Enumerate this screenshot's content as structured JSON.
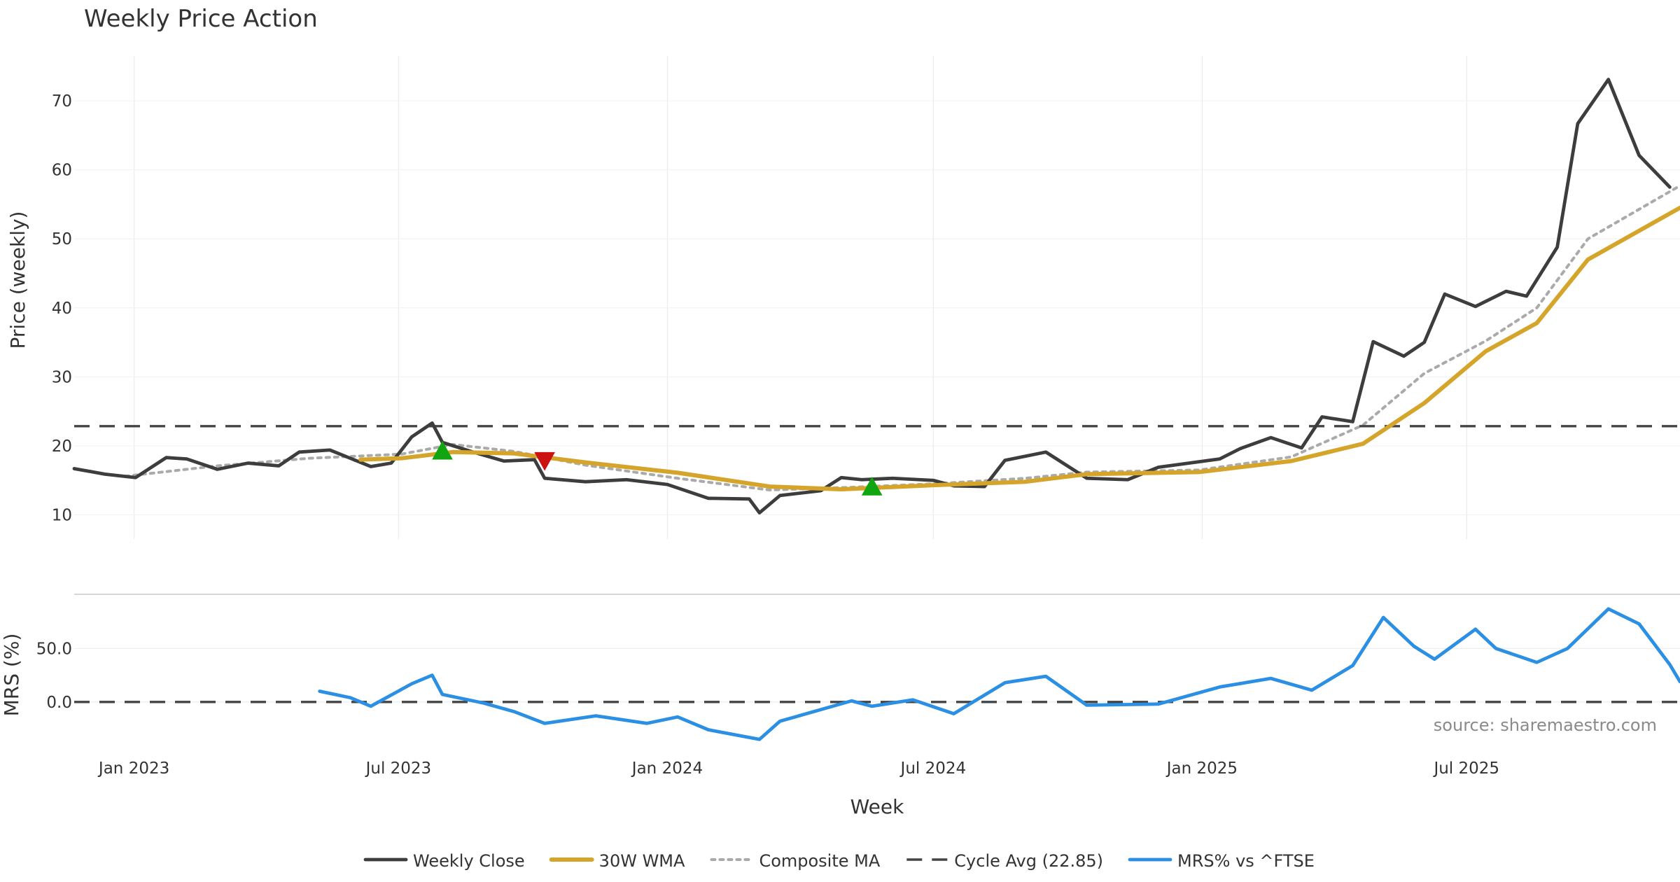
{
  "chart_data": {
    "type": "line",
    "title": "Weekly Price Action",
    "source": "source: sharemaestro.com",
    "x_axis": {
      "label": "Week",
      "range": [
        "2022-11-21",
        "2025-11-24"
      ],
      "tick_labels": [
        "Jan 2023",
        "Jul 2023",
        "Jan 2024",
        "Jul 2024",
        "Jan 2025",
        "Jul 2025"
      ],
      "tick_dates": [
        "2023-01-01",
        "2023-07-01",
        "2024-01-01",
        "2024-07-01",
        "2025-01-01",
        "2025-07-01"
      ]
    },
    "panels": [
      {
        "id": "price",
        "ylabel": "Price (weekly)",
        "ylim": [
          6.5,
          76.5
        ],
        "yticks": [
          10,
          20,
          30,
          40,
          50,
          60,
          70
        ],
        "tick_labels": [
          "10",
          "20",
          "30",
          "40",
          "50",
          "60",
          "70"
        ],
        "grid": true
      },
      {
        "id": "mrs",
        "ylabel": "MRS (%)",
        "ylim": [
          -44,
          100
        ],
        "yticks": [
          0,
          50
        ],
        "tick_labels": [
          "0.0",
          "50.0"
        ],
        "grid": true
      }
    ],
    "series": [
      {
        "name": "Weekly Close",
        "panel": "price",
        "color": "#3d3d3d",
        "style": "solid",
        "points": [
          [
            "2022-11-21",
            16.7
          ],
          [
            "2022-12-12",
            15.9
          ],
          [
            "2023-01-02",
            15.4
          ],
          [
            "2023-01-23",
            18.3
          ],
          [
            "2023-02-06",
            18.1
          ],
          [
            "2023-02-27",
            16.6
          ],
          [
            "2023-03-20",
            17.5
          ],
          [
            "2023-04-10",
            17.1
          ],
          [
            "2023-04-24",
            19.1
          ],
          [
            "2023-05-15",
            19.4
          ],
          [
            "2023-05-29",
            18.2
          ],
          [
            "2023-06-12",
            17.0
          ],
          [
            "2023-06-26",
            17.5
          ],
          [
            "2023-07-10",
            21.3
          ],
          [
            "2023-07-24",
            23.3
          ],
          [
            "2023-07-31",
            20.5
          ],
          [
            "2023-08-21",
            19.1
          ],
          [
            "2023-09-11",
            17.8
          ],
          [
            "2023-10-02",
            18.0
          ],
          [
            "2023-10-09",
            15.3
          ],
          [
            "2023-11-06",
            14.8
          ],
          [
            "2023-12-04",
            15.1
          ],
          [
            "2024-01-01",
            14.4
          ],
          [
            "2024-01-29",
            12.4
          ],
          [
            "2024-02-26",
            12.3
          ],
          [
            "2024-03-04",
            10.3
          ],
          [
            "2024-03-18",
            12.8
          ],
          [
            "2024-04-15",
            13.5
          ],
          [
            "2024-04-29",
            15.4
          ],
          [
            "2024-05-13",
            15.1
          ],
          [
            "2024-06-03",
            15.3
          ],
          [
            "2024-07-01",
            15.0
          ],
          [
            "2024-07-15",
            14.2
          ],
          [
            "2024-08-05",
            14.1
          ],
          [
            "2024-08-19",
            17.9
          ],
          [
            "2024-09-16",
            19.1
          ],
          [
            "2024-10-14",
            15.3
          ],
          [
            "2024-11-11",
            15.1
          ],
          [
            "2024-12-02",
            16.9
          ],
          [
            "2025-01-13",
            18.1
          ],
          [
            "2025-01-27",
            19.6
          ],
          [
            "2025-02-17",
            21.2
          ],
          [
            "2025-03-10",
            19.7
          ],
          [
            "2025-03-24",
            24.2
          ],
          [
            "2025-04-14",
            23.5
          ],
          [
            "2025-04-28",
            35.1
          ],
          [
            "2025-05-19",
            33.0
          ],
          [
            "2025-06-02",
            35.0
          ],
          [
            "2025-06-16",
            42.0
          ],
          [
            "2025-07-07",
            40.2
          ],
          [
            "2025-07-28",
            42.4
          ],
          [
            "2025-08-11",
            41.7
          ],
          [
            "2025-09-01",
            48.8
          ],
          [
            "2025-09-15",
            66.7
          ],
          [
            "2025-10-06",
            73.1
          ],
          [
            "2025-10-27",
            62.1
          ],
          [
            "2025-11-17",
            57.5
          ]
        ]
      },
      {
        "name": "30W WMA",
        "panel": "price",
        "color": "#d4a52a",
        "style": "solid",
        "points": [
          [
            "2023-06-05",
            18.0
          ],
          [
            "2023-07-03",
            18.2
          ],
          [
            "2023-08-07",
            19.1
          ],
          [
            "2023-09-18",
            18.9
          ],
          [
            "2023-11-06",
            17.6
          ],
          [
            "2024-01-08",
            16.1
          ],
          [
            "2024-03-11",
            14.1
          ],
          [
            "2024-04-29",
            13.7
          ],
          [
            "2024-07-01",
            14.3
          ],
          [
            "2024-09-02",
            14.8
          ],
          [
            "2024-10-14",
            15.9
          ],
          [
            "2024-12-30",
            16.2
          ],
          [
            "2025-03-03",
            17.8
          ],
          [
            "2025-04-21",
            20.3
          ],
          [
            "2025-06-02",
            26.2
          ],
          [
            "2025-07-14",
            33.7
          ],
          [
            "2025-08-18",
            37.8
          ],
          [
            "2025-09-22",
            47.0
          ],
          [
            "2025-11-24",
            54.5
          ]
        ]
      },
      {
        "name": "Composite MA",
        "panel": "price",
        "color": "#aaaaaa",
        "style": "dotted",
        "points": [
          [
            "2022-12-26",
            15.6
          ],
          [
            "2023-02-27",
            17.1
          ],
          [
            "2023-05-01",
            18.2
          ],
          [
            "2023-07-03",
            18.8
          ],
          [
            "2023-08-07",
            20.2
          ],
          [
            "2023-09-18",
            19.2
          ],
          [
            "2023-11-06",
            17.2
          ],
          [
            "2024-01-08",
            15.3
          ],
          [
            "2024-03-11",
            13.6
          ],
          [
            "2024-05-06",
            14.0
          ],
          [
            "2024-07-01",
            14.5
          ],
          [
            "2024-09-02",
            15.3
          ],
          [
            "2024-10-14",
            16.2
          ],
          [
            "2024-12-30",
            16.5
          ],
          [
            "2025-03-03",
            18.4
          ],
          [
            "2025-04-21",
            23.0
          ],
          [
            "2025-06-02",
            30.5
          ],
          [
            "2025-07-14",
            35.2
          ],
          [
            "2025-08-18",
            40.0
          ],
          [
            "2025-09-22",
            50.0
          ],
          [
            "2025-11-24",
            57.7
          ]
        ]
      },
      {
        "name": "Cycle Avg (22.85)",
        "panel": "price",
        "color": "#444444",
        "style": "dashed",
        "value": 22.85
      },
      {
        "name": "MRS% vs ^FTSE",
        "panel": "mrs",
        "color": "#2b8fe4",
        "style": "solid",
        "points": [
          [
            "2023-05-08",
            10.0
          ],
          [
            "2023-05-29",
            4.0
          ],
          [
            "2023-06-12",
            -4.0
          ],
          [
            "2023-07-10",
            17.0
          ],
          [
            "2023-07-24",
            25.0
          ],
          [
            "2023-07-31",
            7.0
          ],
          [
            "2023-08-28",
            -1.0
          ],
          [
            "2023-09-18",
            -9.0
          ],
          [
            "2023-10-09",
            -20.0
          ],
          [
            "2023-11-13",
            -13.0
          ],
          [
            "2023-12-18",
            -20.0
          ],
          [
            "2024-01-08",
            -14.0
          ],
          [
            "2024-01-29",
            -26.0
          ],
          [
            "2024-03-04",
            -35.0
          ],
          [
            "2024-03-18",
            -18.0
          ],
          [
            "2024-05-06",
            1.0
          ],
          [
            "2024-05-20",
            -4.0
          ],
          [
            "2024-06-17",
            2.0
          ],
          [
            "2024-07-15",
            -11.0
          ],
          [
            "2024-08-19",
            18.0
          ],
          [
            "2024-09-16",
            24.0
          ],
          [
            "2024-10-14",
            -3.0
          ],
          [
            "2024-12-02",
            -2.0
          ],
          [
            "2025-01-13",
            14.0
          ],
          [
            "2025-02-17",
            22.0
          ],
          [
            "2025-03-17",
            11.0
          ],
          [
            "2025-04-14",
            34.0
          ],
          [
            "2025-05-05",
            79.0
          ],
          [
            "2025-05-26",
            52.0
          ],
          [
            "2025-06-09",
            40.0
          ],
          [
            "2025-07-07",
            68.0
          ],
          [
            "2025-07-21",
            50.0
          ],
          [
            "2025-08-18",
            37.0
          ],
          [
            "2025-09-08",
            50.0
          ],
          [
            "2025-10-06",
            87.0
          ],
          [
            "2025-10-27",
            73.0
          ],
          [
            "2025-11-17",
            35.0
          ],
          [
            "2025-11-24",
            19.0
          ]
        ]
      },
      {
        "name": "Baseline",
        "panel": "mrs",
        "color": "#444444",
        "style": "dashed",
        "value": 0
      }
    ],
    "markers": [
      {
        "type": "buy",
        "date": "2023-07-31",
        "value": 19.2,
        "color": "#11a611"
      },
      {
        "type": "sell",
        "date": "2023-10-09",
        "value": 17.9,
        "color": "#cc1111"
      },
      {
        "type": "buy",
        "date": "2024-05-20",
        "value": 14.0,
        "color": "#11a611"
      }
    ],
    "legend": {
      "placement": "bottom-center",
      "items": [
        {
          "label": "Weekly Close",
          "color": "#3d3d3d",
          "style": "solid"
        },
        {
          "label": "30W WMA",
          "color": "#d4a52a",
          "style": "solid"
        },
        {
          "label": "Composite MA",
          "color": "#aaaaaa",
          "style": "dotted"
        },
        {
          "label": "Cycle Avg (22.85)",
          "color": "#444444",
          "style": "dashed"
        },
        {
          "label": "MRS% vs ^FTSE",
          "color": "#2b8fe4",
          "style": "solid"
        }
      ]
    }
  }
}
